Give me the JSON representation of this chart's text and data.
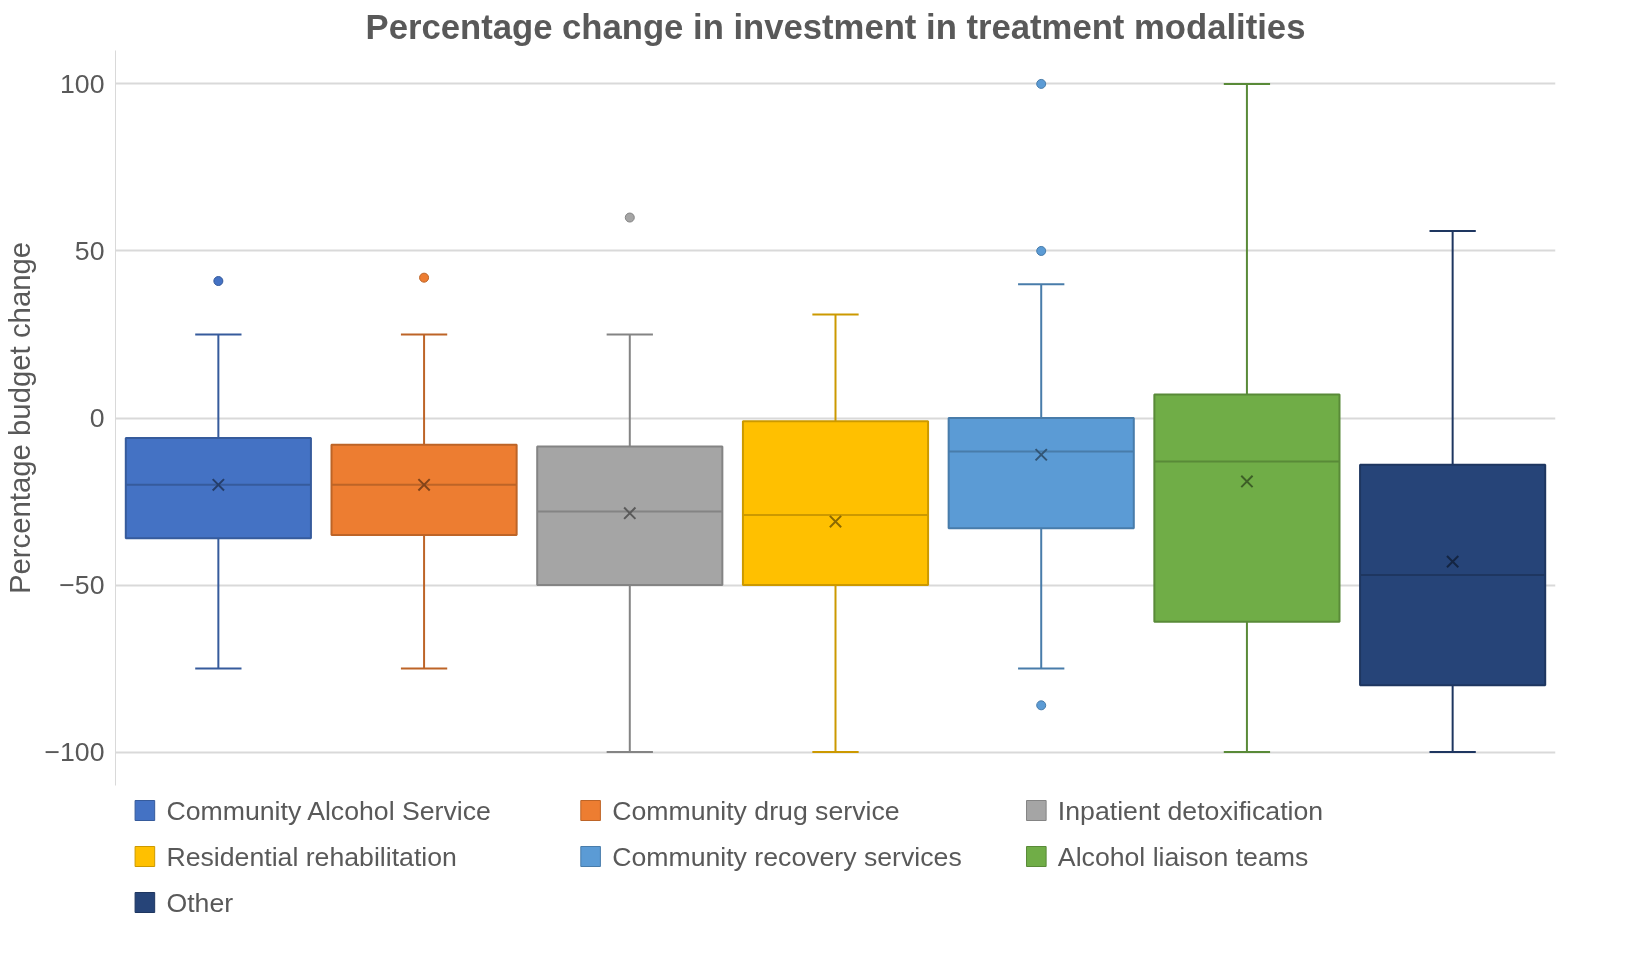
{
  "chart_data": {
    "type": "box",
    "title": "Percentage change in investment in treatment modalities",
    "ylabel": "Percentage budget change",
    "categories": [
      null,
      null,
      null,
      null,
      null,
      null,
      null
    ],
    "ylim": [
      -110,
      110
    ],
    "yticks": [
      -100,
      -50,
      0,
      50,
      100
    ],
    "grid": "y",
    "legend": "bottom",
    "tick_labels": "y",
    "marker": "cross",
    "series": [
      {
        "name": "Community Alcohol Service",
        "color": "#4472c4",
        "boxes": [
          {
            "low": -75,
            "q1": -36,
            "median": -20,
            "q3": -6,
            "high": 25,
            "mean": -20,
            "outliers": [
              41
            ]
          },
          null,
          null,
          null,
          null,
          null,
          null
        ]
      },
      {
        "name": "Community drug service",
        "color": "#ed7d31",
        "boxes": [
          null,
          {
            "low": -75,
            "q1": -35,
            "median": -20,
            "q3": -8,
            "high": 25,
            "mean": -20,
            "outliers": [
              42
            ]
          },
          null,
          null,
          null,
          null,
          null
        ]
      },
      {
        "name": "Inpatient detoxification",
        "color": "#a5a5a5",
        "boxes": [
          null,
          null,
          {
            "low": -100,
            "q1": -50,
            "median": -28,
            "q3": -8.5,
            "high": 25,
            "mean": -28.5,
            "outliers": [
              60
            ]
          },
          null,
          null,
          null,
          null
        ]
      },
      {
        "name": "Residential rehabilitation",
        "color": "#ffc000",
        "boxes": [
          null,
          null,
          null,
          {
            "low": -100,
            "q1": -50,
            "median": -29,
            "q3": -1,
            "high": 31,
            "mean": -31
          },
          null,
          null,
          null
        ]
      },
      {
        "name": "Community recovery services",
        "color": "#5b9bd5",
        "boxes": [
          null,
          null,
          null,
          null,
          {
            "low": -75,
            "q1": -33,
            "median": -10,
            "q3": 0,
            "high": 40,
            "mean": -11,
            "outliers": [
              100,
              50,
              -86
            ]
          },
          null,
          null
        ]
      },
      {
        "name": "Alcohol liaison teams",
        "color": "#70ad47",
        "boxes": [
          null,
          null,
          null,
          null,
          null,
          {
            "low": -100,
            "q1": -61,
            "median": -13,
            "q3": 7,
            "high": 100,
            "mean": -19
          },
          null
        ]
      },
      {
        "name": "Other",
        "color": "#264478",
        "boxes": [
          null,
          null,
          null,
          null,
          null,
          null,
          {
            "low": -100,
            "q1": -80,
            "median": -47,
            "q3": -14,
            "high": 56,
            "mean": -43
          }
        ]
      }
    ]
  }
}
